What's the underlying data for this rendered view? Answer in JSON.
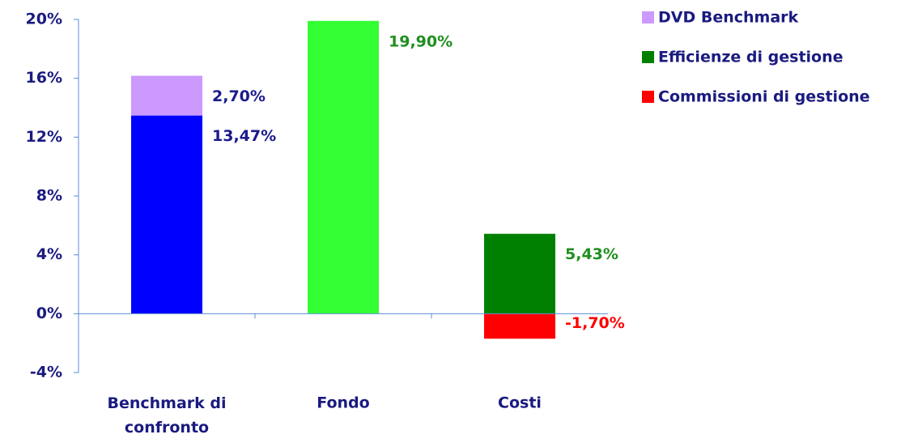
{
  "chart_data": {
    "type": "stacked_bar",
    "categories": [
      "Benchmark di confronto",
      "Fondo",
      "Costi"
    ],
    "series": [
      {
        "color": "#0000ff",
        "label_color": "#1a1a8c",
        "values": [
          13.47,
          null,
          null
        ],
        "value_labels": [
          "13,47%",
          null,
          null
        ]
      },
      {
        "name": "DVD Benchmark",
        "color": "#cc99ff",
        "label_color": "#1a1a8c",
        "values": [
          2.7,
          null,
          null
        ],
        "value_labels": [
          "2,70%",
          null,
          null
        ]
      },
      {
        "color": "#33ff33",
        "label_color": "#1f8f1f",
        "values": [
          null,
          19.9,
          null
        ],
        "value_labels": [
          null,
          "19,90%",
          null
        ]
      },
      {
        "name": "Efficienze di gestione",
        "color": "#008000",
        "label_color": "#1f8f1f",
        "values": [
          null,
          null,
          5.43
        ],
        "value_labels": [
          null,
          null,
          "5,43%"
        ]
      },
      {
        "name": "Commissioni di gestione",
        "color": "#ff0000",
        "label_color": "#ff0000",
        "values": [
          null,
          null,
          -1.7
        ],
        "value_labels": [
          null,
          null,
          "-1,70%"
        ]
      }
    ],
    "ylim": [
      -4,
      20
    ],
    "yticks": [
      {
        "value": -4,
        "label": "-4%"
      },
      {
        "value": 0,
        "label": "0%"
      },
      {
        "value": 4,
        "label": "4%"
      },
      {
        "value": 8,
        "label": "8%"
      },
      {
        "value": 12,
        "label": "12%"
      },
      {
        "value": 16,
        "label": "16%"
      },
      {
        "value": 20,
        "label": "20%"
      }
    ],
    "legend": "top-right"
  }
}
